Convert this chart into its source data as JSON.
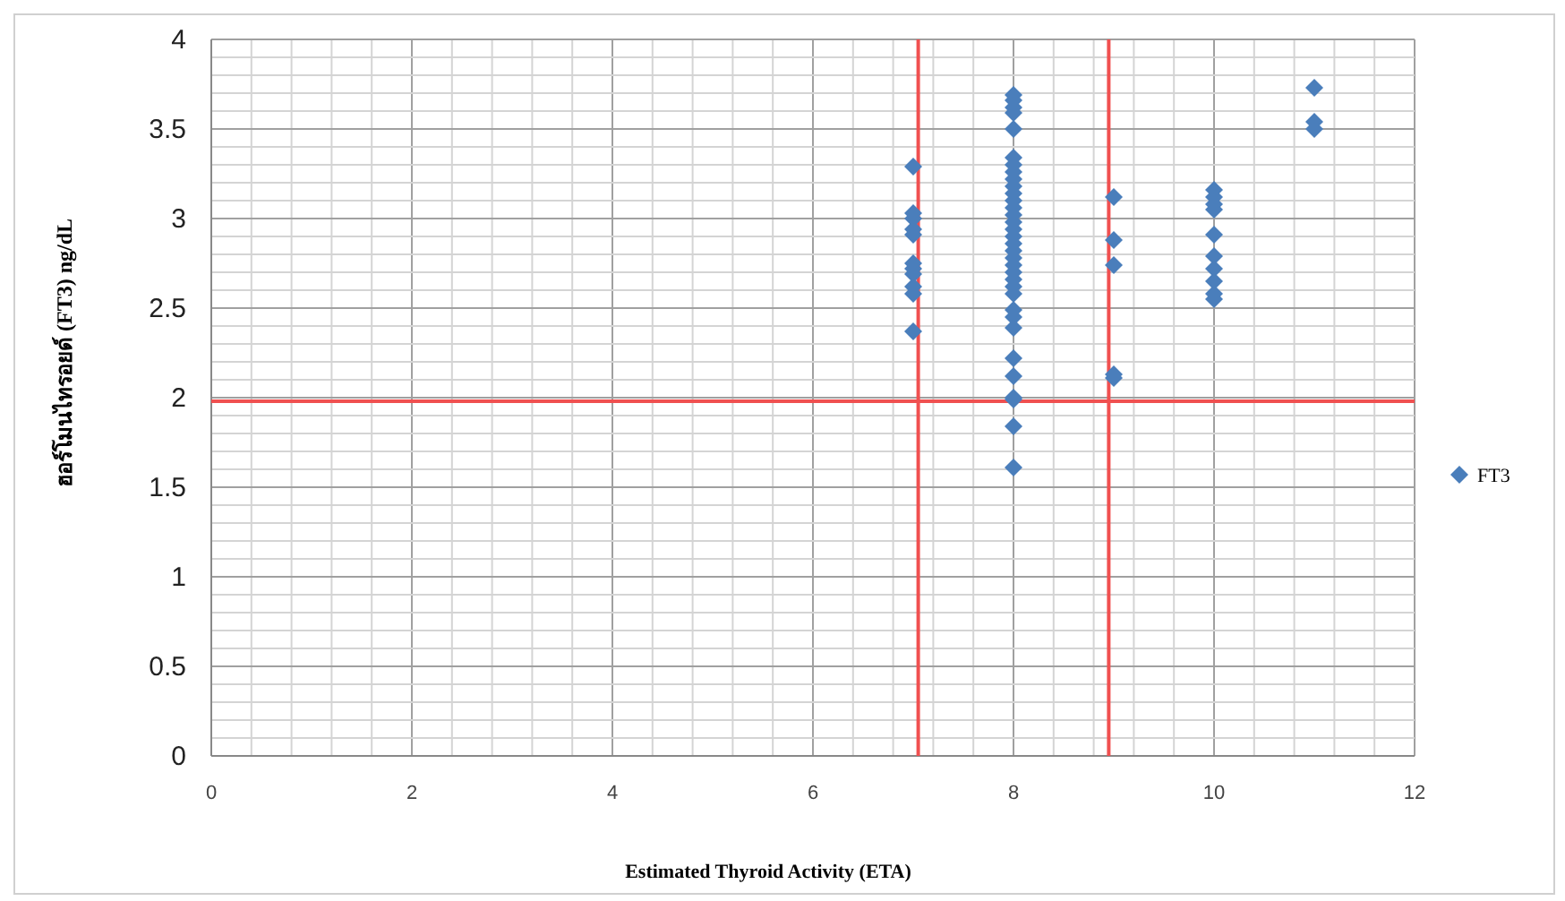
{
  "chart_data": {
    "type": "scatter",
    "xlabel": "Estimated Thyroid Activity (ETA)",
    "ylabel": "ฮอร์โมนไทรอยด์ (FT3) ng/dL",
    "series": [
      {
        "name": "FT3",
        "color": "#4a7ebb",
        "x": [
          7,
          7,
          7,
          7,
          7,
          7,
          7,
          7,
          7,
          7,
          7,
          8,
          8,
          8,
          8,
          8,
          8,
          8,
          8,
          8,
          8,
          8,
          8,
          8,
          8,
          8,
          8,
          8,
          8,
          8,
          8,
          8,
          8,
          8,
          8,
          8,
          8,
          8,
          8,
          8,
          8,
          8,
          8,
          8,
          8,
          9,
          9,
          9,
          9,
          9,
          10,
          10,
          10,
          10,
          10,
          10,
          10,
          10,
          10,
          10,
          11,
          11,
          11
        ],
        "values": [
          3.29,
          3.03,
          3.0,
          2.94,
          2.91,
          2.75,
          2.72,
          2.69,
          2.62,
          2.58,
          2.37,
          3.69,
          3.66,
          3.62,
          3.59,
          3.5,
          3.34,
          3.3,
          3.26,
          3.22,
          3.18,
          3.14,
          3.1,
          3.06,
          3.02,
          2.98,
          2.94,
          2.9,
          2.86,
          2.82,
          2.78,
          2.74,
          2.7,
          2.66,
          2.62,
          2.58,
          2.49,
          2.45,
          2.39,
          2.22,
          2.12,
          2.0,
          1.99,
          1.84,
          1.61,
          3.12,
          2.88,
          2.74,
          2.13,
          2.11,
          3.16,
          3.12,
          3.08,
          3.05,
          2.91,
          2.79,
          2.72,
          2.65,
          2.58,
          2.55,
          3.73,
          3.54,
          3.5
        ]
      }
    ],
    "xlim": [
      0,
      12
    ],
    "xticks": [
      0,
      2,
      4,
      6,
      8,
      10,
      12
    ],
    "ylim": [
      0,
      4
    ],
    "yticks": [
      0,
      0.5,
      1,
      1.5,
      2,
      2.5,
      3,
      3.5,
      4
    ],
    "ref_lines": [
      {
        "axis": "x",
        "value": 7.05,
        "color": "#f05050"
      },
      {
        "axis": "x",
        "value": 8.95,
        "color": "#f05050"
      },
      {
        "axis": "y",
        "value": 1.98,
        "color": "#f05050"
      }
    ],
    "grid": true,
    "legend": "right",
    "marker": "diamond"
  }
}
